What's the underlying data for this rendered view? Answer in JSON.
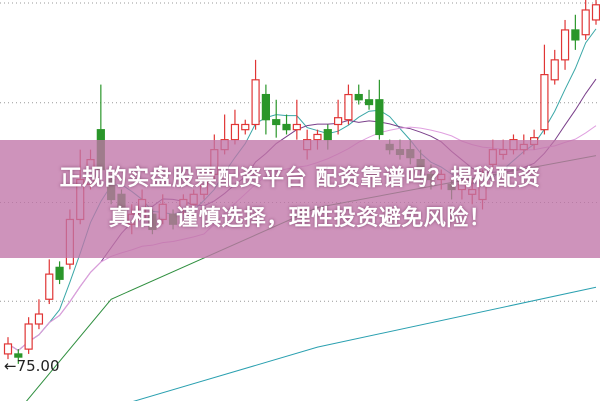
{
  "title": {
    "line1": "正规的实盘股票配资平台 配资靠谱吗？揭秘配资",
    "line2": "真相，谨慎选择，理性投资避免风险！"
  },
  "chart_data": {
    "type": "candlestick",
    "price_marker": "←75.00",
    "price_marker_value": 75.0,
    "ylim": [
      66.5,
      167
    ],
    "gridlines": [
      91.5,
      116.25,
      141.25,
      166.25
    ],
    "grid": true,
    "colors": {
      "up": "#e03535",
      "down": "#2a962a",
      "ma5": "#3aa7a7",
      "ma10": "#7a3f8a",
      "ma20": "#e0a0e0",
      "long1": "#2f8f3f",
      "long2": "#2aa0b0",
      "overlay": "#c074a8"
    },
    "candles": [
      [
        78.3,
        82.5,
        77,
        80.8
      ],
      [
        78.3,
        79.5,
        75.8,
        77.5
      ],
      [
        79.5,
        87.5,
        78.3,
        85.8
      ],
      [
        85.8,
        92,
        84.5,
        88.3
      ],
      [
        92,
        102,
        90.8,
        98.3
      ],
      [
        100,
        101.5,
        95.8,
        97
      ],
      [
        100.8,
        114.5,
        99.5,
        112
      ],
      [
        112,
        129.5,
        110.8,
        122
      ],
      [
        120.8,
        129.5,
        119.5,
        127
      ],
      [
        134.5,
        145.8,
        123.3,
        124.5
      ],
      [
        122,
        123.3,
        115.8,
        117
      ],
      [
        118.3,
        119.5,
        112,
        113.3
      ],
      [
        110.8,
        115.8,
        108.3,
        113.3
      ],
      [
        112,
        119.5,
        110.8,
        117
      ],
      [
        113.3,
        114.5,
        108.3,
        109.5
      ],
      [
        112,
        118.3,
        110.8,
        115.8
      ],
      [
        113.3,
        114.5,
        109.5,
        110.8
      ],
      [
        114.5,
        118.3,
        113.3,
        117
      ],
      [
        115.8,
        119.5,
        114.5,
        118.3
      ],
      [
        118.3,
        124.5,
        117,
        122
      ],
      [
        123.3,
        133.3,
        122,
        129.5
      ],
      [
        129.5,
        138.3,
        128.3,
        132
      ],
      [
        132,
        139.5,
        130.8,
        135.8
      ],
      [
        134.5,
        137,
        133.3,
        135.8
      ],
      [
        135.8,
        152,
        134.5,
        147
      ],
      [
        143.3,
        145.8,
        133.3,
        137
      ],
      [
        137,
        142,
        132.5,
        135.8
      ],
      [
        135.8,
        138.3,
        133.3,
        134.5
      ],
      [
        134.5,
        142,
        132,
        135.8
      ],
      [
        129.5,
        134.5,
        127,
        132
      ],
      [
        132,
        134.5,
        129.5,
        133.3
      ],
      [
        134.5,
        135.8,
        129.5,
        132
      ],
      [
        135.8,
        142,
        133.3,
        137.5
      ],
      [
        137,
        145.8,
        135.8,
        143.3
      ],
      [
        143.3,
        145.8,
        140.8,
        142
      ],
      [
        142,
        144.5,
        139.5,
        140.8
      ],
      [
        142,
        147,
        132,
        133.3
      ],
      [
        130.8,
        132,
        128.3,
        129.5
      ],
      [
        129.5,
        132,
        127,
        128.3
      ],
      [
        129.5,
        132,
        125.8,
        127.5
      ],
      [
        127,
        129.5,
        122,
        124.5
      ],
      [
        123.3,
        125.8,
        119.5,
        122
      ],
      [
        122,
        124.5,
        119.5,
        123.3
      ],
      [
        120.8,
        122,
        117,
        119.5
      ],
      [
        119.5,
        122,
        117,
        120.8
      ],
      [
        118.3,
        122,
        115.8,
        119.5
      ],
      [
        117,
        124.5,
        114.5,
        123.3
      ],
      [
        125.8,
        132,
        124.5,
        129.5
      ],
      [
        128.3,
        132,
        127,
        129.5
      ],
      [
        129.5,
        133.3,
        128.3,
        132
      ],
      [
        129.5,
        133.3,
        128.3,
        130.8
      ],
      [
        130.8,
        134.5,
        129.5,
        132.5
      ],
      [
        134.5,
        155.8,
        133.3,
        148.3
      ],
      [
        147,
        154.5,
        145.8,
        152
      ],
      [
        152,
        162,
        149.5,
        159.5
      ],
      [
        159.5,
        163.3,
        154.5,
        157
      ],
      [
        158.3,
        167,
        157,
        164.5
      ],
      [
        162,
        167,
        160.8,
        165.8
      ]
    ],
    "long_averages": [
      {
        "color_key": "long1",
        "points": [
          [
            1,
            64
          ],
          [
            10,
            92
          ],
          [
            30,
            115
          ],
          [
            57,
            128
          ]
        ]
      },
      {
        "color_key": "long2",
        "points": [
          [
            9,
            64
          ],
          [
            30,
            80
          ],
          [
            57,
            95
          ]
        ]
      }
    ]
  }
}
